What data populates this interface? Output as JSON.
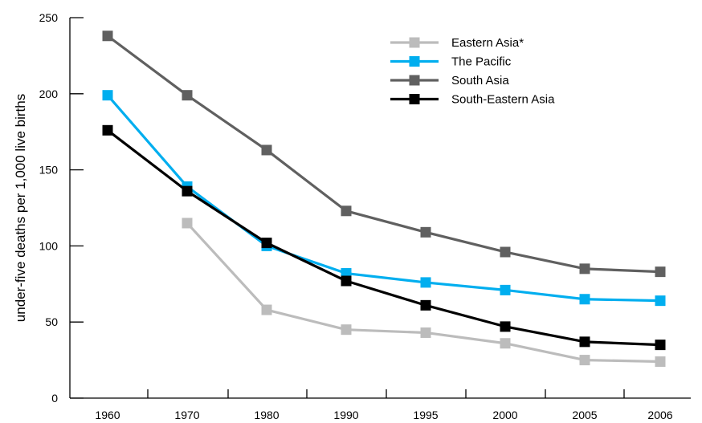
{
  "chart_data": {
    "type": "line",
    "ylabel": "under-five deaths per 1,000 live births",
    "xlabel": "",
    "title": "",
    "categories": [
      "1960",
      "1970",
      "1980",
      "1990",
      "1995",
      "2000",
      "2005",
      "2006"
    ],
    "ylim": [
      0,
      250
    ],
    "yticks": [
      "0",
      "50",
      "100",
      "150",
      "200",
      "250"
    ],
    "legend_position": "top-right",
    "grid": false,
    "series": [
      {
        "name": "Eastern Asia*",
        "color": "#bcbcbc",
        "values": [
          null,
          115,
          58,
          45,
          43,
          36,
          25,
          24
        ]
      },
      {
        "name": "The Pacific",
        "color": "#00aeef",
        "values": [
          199,
          139,
          100,
          82,
          76,
          71,
          65,
          64
        ]
      },
      {
        "name": "South Asia",
        "color": "#606060",
        "values": [
          238,
          199,
          163,
          123,
          109,
          96,
          85,
          83
        ]
      },
      {
        "name": "South-Eastern Asia",
        "color": "#000000",
        "values": [
          176,
          136,
          102,
          77,
          61,
          47,
          37,
          35
        ]
      }
    ]
  }
}
